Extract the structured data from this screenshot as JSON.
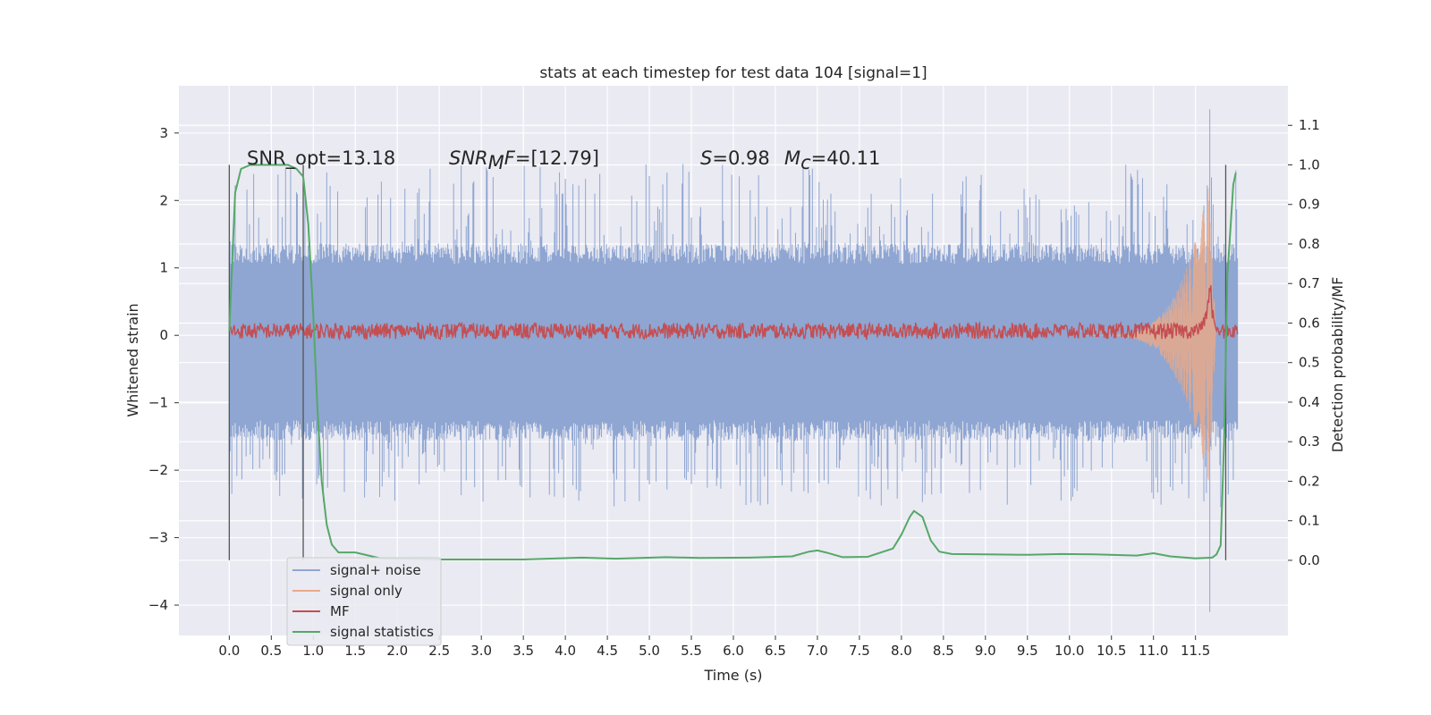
{
  "chart_data": {
    "type": "line",
    "title": "stats at each timestep for test data 104 [signal=1]",
    "xlabel": "Time (s)",
    "ylabel": "Whitened strain",
    "y2label": "Detection probability/MF",
    "xlim": [
      -0.6,
      12.6
    ],
    "ylim": [
      -4.45,
      3.7
    ],
    "y2lim": [
      -0.19,
      1.2
    ],
    "x_ticks": [
      0.0,
      0.5,
      1.0,
      1.5,
      2.0,
      2.5,
      3.0,
      3.5,
      4.0,
      4.5,
      5.0,
      5.5,
      6.0,
      6.5,
      7.0,
      7.5,
      8.0,
      8.5,
      9.0,
      9.5,
      10.0,
      10.5,
      11.0,
      11.5
    ],
    "x_tick_labels": [
      "0.0",
      "0.5",
      "1.0",
      "1.5",
      "2.0",
      "2.5",
      "3.0",
      "3.5",
      "4.0",
      "4.5",
      "5.0",
      "5.5",
      "6.0",
      "6.5",
      "7.0",
      "7.5",
      "8.0",
      "8.5",
      "9.0",
      "9.5",
      "10.0",
      "10.5",
      "11.0",
      "11.5"
    ],
    "y_ticks": [
      -4,
      -3,
      -2,
      -1,
      0,
      1,
      2,
      3
    ],
    "y_tick_labels": [
      "−4",
      "−3",
      "−2",
      "−1",
      "0",
      "1",
      "2",
      "3"
    ],
    "y2_ticks": [
      0.0,
      0.1,
      0.2,
      0.3,
      0.4,
      0.5,
      0.6,
      0.7,
      0.8,
      0.9,
      1.0,
      1.1
    ],
    "y2_tick_labels": [
      "0.0",
      "0.1",
      "0.2",
      "0.3",
      "0.4",
      "0.5",
      "0.6",
      "0.7",
      "0.8",
      "0.9",
      "1.0",
      "1.1"
    ],
    "grid": true,
    "legend_position": "lower-left",
    "annotations": {
      "snr_opt": "SNR_opt=13.18",
      "snr_mf_main": "SNR",
      "snr_mf_sub": "M",
      "snr_mf_rest": "F",
      "snr_mf_value": "=[12.79]",
      "s_symbol": "S",
      "s_value": "=0.98",
      "mc_symbol": "M",
      "mc_sub": "c",
      "mc_value": "=40.11"
    },
    "vertical_lines": [
      0.0,
      0.88,
      11.86
    ],
    "series": [
      {
        "name": "signal+ noise",
        "color": "#8fa6d2",
        "axis": "left",
        "x_range": [
          0.0,
          12.0
        ],
        "noise_band": [
          -1.5,
          1.3
        ],
        "envelope_min": -2.55,
        "envelope_max": 2.55,
        "features": [
          {
            "x": 11.67,
            "y_max": 3.35,
            "y_min": -4.1
          }
        ]
      },
      {
        "name": "signal only",
        "color": "#e8a98b",
        "axis": "left",
        "chirp": {
          "x_start": 10.2,
          "x_peak": 11.67,
          "peak_amp": 2.3,
          "x_end": 11.74
        }
      },
      {
        "name": "MF",
        "color": "#c44e52",
        "axis": "right",
        "x_range": [
          0.0,
          12.0
        ],
        "baseline": 0.58,
        "noise_amp": 0.02,
        "peak": {
          "x": 11.67,
          "y": 0.74
        }
      },
      {
        "name": "signal statistics",
        "color": "#55a868",
        "axis": "right",
        "x": [
          0.0,
          0.07,
          0.14,
          0.25,
          0.5,
          0.7,
          0.8,
          0.88,
          0.94,
          1.0,
          1.05,
          1.1,
          1.16,
          1.22,
          1.3,
          1.4,
          1.5,
          1.8,
          2.5,
          3.5,
          4.2,
          4.6,
          5.2,
          5.6,
          6.2,
          6.7,
          6.9,
          7.0,
          7.1,
          7.3,
          7.6,
          7.9,
          8.0,
          8.1,
          8.15,
          8.25,
          8.35,
          8.45,
          8.6,
          9.0,
          9.5,
          9.9,
          10.3,
          10.8,
          11.0,
          11.2,
          11.5,
          11.7,
          11.75,
          11.8,
          11.84,
          11.88,
          11.95,
          11.98
        ],
        "y": [
          0.58,
          0.93,
          0.99,
          1.0,
          1.0,
          1.0,
          0.99,
          0.97,
          0.85,
          0.62,
          0.38,
          0.2,
          0.09,
          0.04,
          0.02,
          0.02,
          0.02,
          0.005,
          0.002,
          0.002,
          0.007,
          0.004,
          0.008,
          0.006,
          0.007,
          0.01,
          0.022,
          0.025,
          0.02,
          0.008,
          0.009,
          0.03,
          0.065,
          0.11,
          0.125,
          0.11,
          0.05,
          0.022,
          0.016,
          0.015,
          0.014,
          0.016,
          0.015,
          0.012,
          0.018,
          0.01,
          0.005,
          0.007,
          0.015,
          0.038,
          0.3,
          0.72,
          0.95,
          0.98
        ]
      }
    ]
  }
}
